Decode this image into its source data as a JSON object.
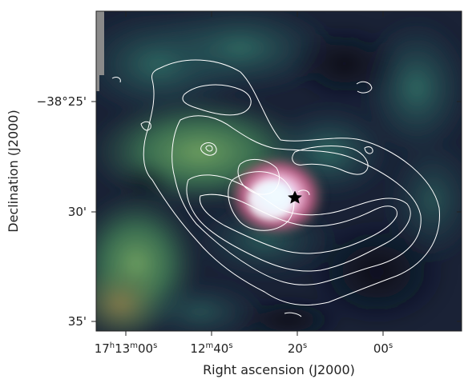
{
  "figure": {
    "xlabel": "Right ascension (J2000)",
    "ylabel": "Declination (J2000)",
    "x_ticks": [
      {
        "h": "17",
        "m": "13",
        "s": "00",
        "unit_h": "h",
        "unit_m": "m",
        "unit_s": "s"
      },
      {
        "h": "",
        "m": "12",
        "s": "40",
        "unit_h": "",
        "unit_m": "m",
        "unit_s": "s"
      },
      {
        "h": "",
        "m": "",
        "s": "20",
        "unit_h": "",
        "unit_m": "",
        "unit_s": "s"
      },
      {
        "h": "",
        "m": "",
        "s": "00",
        "unit_h": "",
        "unit_m": "",
        "unit_s": "s"
      }
    ],
    "y_ticks": [
      "−38°25'",
      "30'",
      "35'"
    ],
    "colors": {
      "background_low": "#141a2e",
      "emission_mid": "#3f7a55",
      "emission_high": "#e9a8c8",
      "peak": "#dff2ff",
      "contour": "#ffffff",
      "marker": "#000000"
    },
    "marker_symbol": "star"
  }
}
